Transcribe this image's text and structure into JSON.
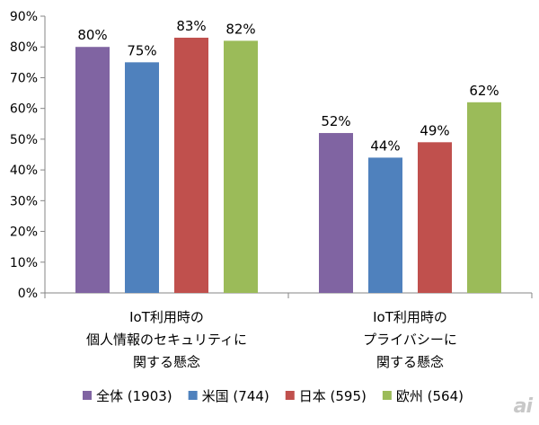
{
  "chart_data": {
    "type": "bar",
    "title": "",
    "xlabel": "",
    "ylabel": "",
    "ylim": [
      0,
      90
    ],
    "y_ticks": [
      "0%",
      "10%",
      "20%",
      "30%",
      "40%",
      "50%",
      "60%",
      "70%",
      "80%",
      "90%"
    ],
    "categories": [
      [
        "IoT利用時の",
        "個人情報のセキュリティに",
        "関する懸念"
      ],
      [
        "IoT利用時の",
        "プライバシーに",
        "関する懸念"
      ]
    ],
    "series": [
      {
        "name": "全体 (1903)",
        "color": "#8064A2",
        "values": [
          80,
          52
        ],
        "labels": [
          "80%",
          "52%"
        ]
      },
      {
        "name": "米国 (744)",
        "color": "#4F81BD",
        "values": [
          75,
          44
        ],
        "labels": [
          "75%",
          "44%"
        ]
      },
      {
        "name": "日本 (595)",
        "color": "#C0504D",
        "values": [
          83,
          49
        ],
        "labels": [
          "83%",
          "49%"
        ]
      },
      {
        "name": "欧州 (564)",
        "color": "#9BBB59",
        "values": [
          82,
          62
        ],
        "labels": [
          "82%",
          "62%"
        ]
      }
    ],
    "grid": false,
    "legend_position": "bottom"
  },
  "watermark": "ai"
}
